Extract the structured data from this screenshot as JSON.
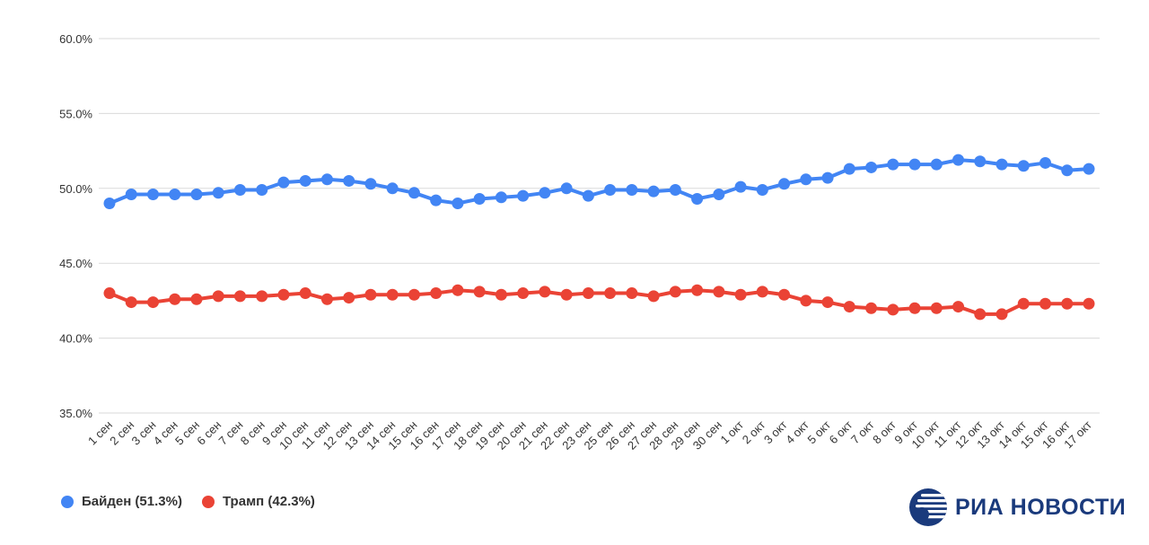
{
  "chart_data": {
    "type": "line",
    "title": "",
    "xlabel": "",
    "ylabel": "",
    "ylim": [
      35,
      60
    ],
    "yticks": [
      "35.0%",
      "40.0%",
      "45.0%",
      "50.0%",
      "55.0%",
      "60.0%"
    ],
    "grid": true,
    "legend_position": "bottom-left",
    "categories": [
      "1 сен",
      "2 сен",
      "3 сен",
      "4 сен",
      "5 сен",
      "6 сен",
      "7 сен",
      "8 сен",
      "9 сен",
      "10 сен",
      "11 сен",
      "12 сен",
      "13 сен",
      "14 сен",
      "15 сен",
      "16 сен",
      "17 сен",
      "18 сен",
      "19 сен",
      "20 сен",
      "21 сен",
      "22 сен",
      "23 сен",
      "25 сен",
      "26 сен",
      "27 сен",
      "28 сен",
      "29 сен",
      "30 сен",
      "1 окт",
      "2 окт",
      "3 окт",
      "4 окт",
      "5 окт",
      "6 окт",
      "7 окт",
      "8 окт",
      "9 окт",
      "10 окт",
      "11 окт",
      "12 окт",
      "13 окт",
      "14 окт",
      "15 окт",
      "16 окт",
      "17 окт"
    ],
    "series": [
      {
        "name": "Байден (51.3%)",
        "color": "#4285f4",
        "values": [
          49.0,
          49.6,
          49.6,
          49.6,
          49.6,
          49.7,
          49.9,
          49.9,
          50.4,
          50.5,
          50.6,
          50.5,
          50.3,
          50.0,
          49.7,
          49.2,
          49.0,
          49.3,
          49.4,
          49.5,
          49.7,
          50.0,
          49.5,
          49.9,
          49.9,
          49.8,
          49.9,
          49.3,
          49.6,
          50.1,
          49.9,
          50.3,
          50.6,
          50.7,
          51.3,
          51.4,
          51.6,
          51.6,
          51.6,
          51.9,
          51.8,
          51.6,
          51.5,
          51.7,
          51.2,
          51.3
        ]
      },
      {
        "name": "Трамп (42.3%)",
        "color": "#ea4335",
        "values": [
          43.0,
          42.4,
          42.4,
          42.6,
          42.6,
          42.8,
          42.8,
          42.8,
          42.9,
          43.0,
          42.6,
          42.7,
          42.9,
          42.9,
          42.9,
          43.0,
          43.2,
          43.1,
          42.9,
          43.0,
          43.1,
          42.9,
          43.0,
          43.0,
          43.0,
          42.8,
          43.1,
          43.2,
          43.1,
          42.9,
          43.1,
          42.9,
          42.5,
          42.4,
          42.1,
          42.0,
          41.9,
          42.0,
          42.0,
          42.1,
          41.6,
          41.6,
          42.3,
          42.3,
          42.3,
          42.3
        ]
      }
    ]
  },
  "logo": {
    "text": "РИА НОВОСТИ",
    "icon": "ria-globe-icon",
    "color": "#1a3a7c"
  }
}
